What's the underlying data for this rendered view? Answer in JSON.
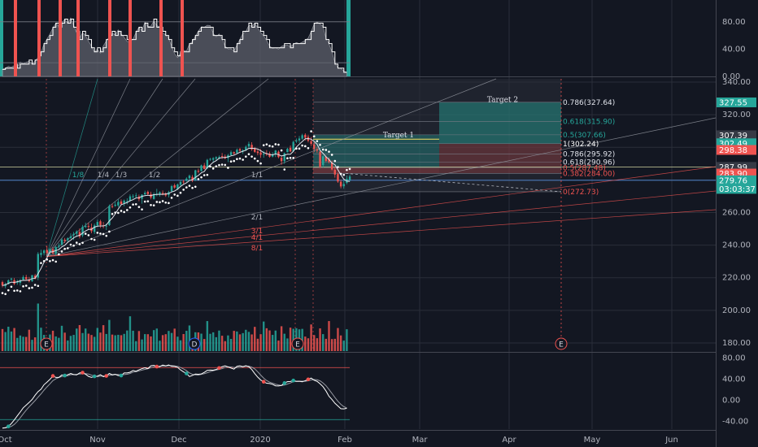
{
  "chart_data": {
    "type": "candlestick",
    "colors": {
      "background": "#131722",
      "up": "#26a69a",
      "down": "#ef5350",
      "grid": "#2a2e39",
      "text": "#b2b5be"
    },
    "x_axis": {
      "tick_labels": [
        "Oct",
        "Nov",
        "Dec",
        "2020",
        "Feb",
        "Mar",
        "Apr",
        "May",
        "Jun"
      ]
    },
    "top_panel": {
      "ylim": [
        0,
        100
      ],
      "tick_labels": [
        "80.00",
        "40.00",
        "0.00"
      ],
      "tick_values": [
        80,
        40,
        0
      ]
    },
    "main_panel": {
      "ylim": [
        175,
        342
      ],
      "tick_labels": [
        "340.00",
        "320.00",
        "300.00",
        "280.00",
        "260.00",
        "240.00",
        "220.00",
        "200.00",
        "180.00"
      ],
      "tick_values": [
        340,
        320,
        300,
        280,
        260,
        240,
        220,
        200,
        180
      ],
      "price_tags": [
        {
          "text": "327.55",
          "value": 327.55,
          "color": "#26a69a"
        },
        {
          "text": "307.39",
          "value": 307.39,
          "color": "#363a45"
        },
        {
          "text": "302.49",
          "value": 302.49,
          "color": "#26a69a"
        },
        {
          "text": "298.38",
          "value": 298.38,
          "color": "#ef5350"
        },
        {
          "text": "287.99",
          "value": 287.99,
          "color": "#363a45"
        },
        {
          "text": "283.90",
          "value": 283.9,
          "color": "#ef5350"
        },
        {
          "text": "279.76",
          "value": 279.76,
          "color": "#26a69a"
        },
        {
          "text": "03:03:37",
          "value": 274.5,
          "color": "#26a69a"
        }
      ],
      "fib_levels": [
        {
          "text": "0.786(327.64)",
          "value": 327.64,
          "color": "#e0e3eb"
        },
        {
          "text": "0.618(315.90)",
          "value": 315.9,
          "color": "#26a69a"
        },
        {
          "text": "0.5(307.66)",
          "value": 307.66,
          "color": "#26a69a"
        },
        {
          "text": "1(302.24)",
          "value": 302.24,
          "color": "#ffffff"
        },
        {
          "text": "0.786(295.92)",
          "value": 295.92,
          "color": "#e0e3eb"
        },
        {
          "text": "0.618(290.96)",
          "value": 290.96,
          "color": "#e0e3eb"
        },
        {
          "text": "0.5(287.48)",
          "value": 287.48,
          "color": "#ef5350"
        },
        {
          "text": "0.382(284.00)",
          "value": 284.0,
          "color": "#ef5350"
        },
        {
          "text": "0(272.73)",
          "value": 272.73,
          "color": "#ef5350"
        }
      ],
      "targets": [
        {
          "text": "Target 1",
          "value": 305.0
        },
        {
          "text": "Target 2",
          "value": 326.8
        }
      ],
      "gann_labels": [
        {
          "text": "1/8",
          "color": "#26a69a"
        },
        {
          "text": "1/4",
          "color": "#b2b5be"
        },
        {
          "text": "1/3",
          "color": "#b2b5be"
        },
        {
          "text": "1/2",
          "color": "#b2b5be"
        },
        {
          "text": "1/1",
          "color": "#b2b5be"
        },
        {
          "text": "2/1",
          "color": "#b2b5be"
        },
        {
          "text": "3/1",
          "color": "#ef5350"
        },
        {
          "text": "4/1",
          "color": "#ef5350"
        },
        {
          "text": "8/1",
          "color": "#ef5350"
        }
      ],
      "event_markers": [
        {
          "text": "E",
          "bar": 12,
          "color": "#ef5350"
        },
        {
          "text": "D",
          "bar": 49,
          "color": "#2962ff"
        },
        {
          "text": "E",
          "bar": 74,
          "color": "#ef5350"
        },
        {
          "text": "E",
          "bar": 141,
          "color": "#ef5350"
        }
      ]
    },
    "ohlc": [
      [
        217.3,
        218.2,
        214.1,
        215.2
      ],
      [
        214.8,
        217.0,
        213.5,
        216.1
      ],
      [
        216.2,
        219.0,
        215.8,
        218.4
      ],
      [
        218.9,
        220.0,
        218.0,
        219.5
      ],
      [
        218.5,
        219.8,
        215.5,
        216.3
      ],
      [
        216.9,
        218.8,
        215.7,
        217.6
      ],
      [
        216.9,
        219.3,
        215.2,
        218.4
      ],
      [
        218.8,
        221.5,
        218.2,
        220.4
      ],
      [
        220.4,
        221.8,
        218.6,
        219.1
      ],
      [
        218.6,
        220.5,
        217.1,
        217.8
      ],
      [
        217.9,
        221.7,
        217.4,
        221.6
      ],
      [
        221.3,
        222.4,
        219.1,
        219.3
      ],
      [
        220.1,
        235.7,
        218.5,
        234.6
      ],
      [
        234.0,
        237.2,
        232.5,
        235.2
      ],
      [
        235.1,
        237.4,
        233.7,
        236.7
      ],
      [
        237.0,
        239.4,
        234.7,
        235.1
      ],
      [
        235.7,
        238.1,
        233.7,
        237.6
      ],
      [
        237.4,
        238.7,
        234.3,
        235.0
      ],
      [
        234.7,
        239.4,
        233.4,
        238.9
      ],
      [
        239.0,
        241.2,
        237.9,
        239.6
      ],
      [
        240.2,
        244.3,
        239.6,
        243.4
      ],
      [
        243.3,
        244.4,
        241.2,
        242.6
      ],
      [
        243.0,
        244.8,
        241.6,
        244.2
      ],
      [
        244.3,
        247.2,
        243.8,
        245.4
      ],
      [
        246.1,
        248.1,
        243.2,
        246.9
      ],
      [
        247.0,
        249.1,
        245.0,
        248.4
      ],
      [
        248.1,
        250.2,
        244.1,
        245.3
      ],
      [
        246.0,
        252.4,
        244.9,
        251.2
      ],
      [
        251.1,
        253.8,
        250.5,
        251.8
      ],
      [
        251.7,
        253.7,
        249.6,
        251.5
      ],
      [
        250.8,
        253.2,
        247.3,
        248.6
      ],
      [
        248.1,
        253.2,
        246.8,
        252.1
      ],
      [
        252.1,
        255.6,
        251.1,
        254.2
      ],
      [
        254.6,
        255.6,
        250.6,
        252.3
      ],
      [
        252.1,
        254.2,
        250.3,
        251.5
      ],
      [
        251.5,
        253.2,
        249.2,
        251.9
      ],
      [
        252.3,
        264.9,
        251.8,
        264.0
      ],
      [
        263.9,
        265.5,
        262.6,
        263.4
      ],
      [
        264.1,
        266.6,
        263.5,
        264.8
      ],
      [
        264.3,
        268.1,
        263.3,
        266.5
      ],
      [
        266.8,
        268.1,
        264.5,
        265.2
      ],
      [
        265.7,
        268.0,
        263.8,
        267.3
      ],
      [
        266.8,
        268.7,
        265.0,
        267.0
      ],
      [
        267.2,
        271.1,
        266.6,
        269.9
      ],
      [
        269.5,
        271.2,
        268.4,
        270.0
      ],
      [
        270.3,
        272.0,
        268.6,
        270.5
      ],
      [
        269.8,
        271.0,
        266.9,
        268.2
      ],
      [
        268.4,
        271.2,
        265.4,
        270.9
      ],
      [
        271.2,
        273.4,
        270.2,
        272.1
      ],
      [
        272.7,
        273.5,
        270.4,
        271.3
      ],
      [
        271.3,
        272.8,
        268.1,
        269.2
      ],
      [
        268.3,
        272.3,
        267.9,
        271.2
      ],
      [
        271.5,
        274.5,
        270.0,
        271.5
      ],
      [
        271.4,
        273.0,
        269.8,
        272.4
      ],
      [
        272.0,
        273.5,
        270.5,
        271.5
      ],
      [
        271.3,
        272.4,
        269.6,
        270.5
      ],
      [
        270.8,
        273.3,
        269.3,
        272.5
      ],
      [
        273.0,
        277.0,
        272.5,
        276.2
      ],
      [
        276.7,
        277.8,
        274.5,
        275.3
      ],
      [
        274.6,
        277.8,
        273.8,
        277.2
      ],
      [
        277.0,
        279.8,
        275.6,
        278.8
      ],
      [
        279.0,
        280.1,
        277.5,
        278.9
      ],
      [
        279.4,
        281.6,
        278.9,
        280.8
      ],
      [
        281.0,
        283.3,
        279.9,
        282.6
      ],
      [
        281.8,
        283.0,
        278.6,
        279.5
      ],
      [
        279.9,
        286.2,
        279.3,
        285.9
      ],
      [
        285.6,
        287.0,
        284.0,
        285.0
      ],
      [
        285.5,
        289.4,
        285.1,
        288.9
      ],
      [
        288.9,
        290.4,
        286.4,
        286.7
      ],
      [
        287.1,
        292.9,
        286.6,
        292.3
      ],
      [
        292.5,
        293.5,
        291.7,
        292.9
      ],
      [
        292.4,
        294.0,
        290.5,
        293.3
      ],
      [
        293.1,
        294.5,
        291.8,
        293.9
      ],
      [
        293.5,
        295.0,
        292.6,
        294.1
      ],
      [
        294.6,
        296.5,
        292.9,
        294.2
      ],
      [
        294.3,
        295.6,
        292.7,
        293.2
      ],
      [
        293.4,
        296.0,
        290.9,
        295.2
      ],
      [
        295.2,
        298.1,
        294.8,
        297.0
      ],
      [
        297.0,
        297.4,
        295.1,
        296.2
      ],
      [
        296.5,
        299.3,
        296.3,
        298.5
      ],
      [
        298.9,
        299.7,
        296.6,
        297.9
      ],
      [
        297.6,
        298.9,
        295.9,
        298.2
      ],
      [
        298.1,
        301.2,
        297.8,
        300.3
      ],
      [
        300.5,
        303.5,
        299.3,
        302.1
      ],
      [
        301.5,
        303.1,
        297.8,
        298.7
      ],
      [
        299.3,
        300.2,
        296.6,
        297.2
      ],
      [
        297.4,
        299.0,
        295.1,
        296.5
      ],
      [
        296.8,
        298.8,
        293.6,
        295.4
      ],
      [
        295.7,
        297.8,
        293.6,
        296.0
      ],
      [
        296.0,
        298.3,
        294.8,
        295.8
      ],
      [
        296.2,
        297.4,
        293.6,
        294.2
      ],
      [
        294.3,
        297.0,
        293.8,
        295.7
      ],
      [
        296.1,
        298.4,
        294.0,
        298.0
      ],
      [
        297.3,
        298.1,
        293.3,
        294.0
      ],
      [
        293.6,
        294.6,
        289.3,
        291.5
      ],
      [
        291.5,
        296.8,
        289.9,
        296.4
      ],
      [
        297.0,
        299.7,
        296.8,
        299.1
      ],
      [
        299.7,
        301.1,
        297.0,
        297.5
      ],
      [
        297.6,
        304.1,
        297.0,
        303.3
      ],
      [
        303.6,
        305.4,
        302.7,
        304.2
      ],
      [
        304.2,
        306.9,
        302.7,
        305.4
      ],
      [
        305.3,
        308.3,
        304.6,
        307.4
      ],
      [
        307.7,
        308.6,
        304.2,
        305.9
      ],
      [
        306.4,
        307.7,
        303.0,
        304.0
      ],
      [
        303.8,
        306.3,
        300.8,
        302.1
      ],
      [
        301.7,
        303.2,
        297.1,
        299.1
      ],
      [
        298.7,
        300.3,
        296.6,
        298.0
      ],
      [
        297.4,
        298.0,
        287.2,
        287.9
      ],
      [
        289.1,
        295.1,
        287.8,
        294.5
      ],
      [
        294.2,
        294.9,
        290.9,
        291.6
      ],
      [
        292.6,
        293.8,
        290.1,
        291.0
      ],
      [
        290.6,
        291.9,
        285.8,
        286.4
      ],
      [
        286.2,
        288.1,
        281.4,
        283.3
      ],
      [
        283.6,
        284.4,
        278.2,
        279.0
      ],
      [
        278.9,
        280.2,
        274.8,
        276.0
      ],
      [
        276.1,
        279.6,
        274.6,
        277.5
      ],
      [
        278.2,
        282.6,
        277.3,
        280.7
      ],
      [
        280.0,
        283.2,
        279.0,
        282.1
      ]
    ],
    "volume": [
      28.6,
      24.7,
      31.6,
      25.4,
      29.9,
      17.1,
      20.2,
      18.6,
      18.4,
      27.7,
      14.6,
      17.8,
      61.6,
      30.3,
      21.0,
      15.4,
      21.5,
      26.4,
      19.0,
      17.2,
      32.8,
      23.9,
      13.8,
      19.7,
      21.0,
      29.2,
      33.7,
      23.4,
      29.2,
      22.6,
      20.9,
      18.5,
      30.0,
      24.0,
      33.6,
      22.2,
      40.4,
      21.4,
      20.5,
      21.1,
      20.6,
      22.3,
      26.7,
      45.1,
      26.4,
      12.9,
      26.0,
      15.1,
      22.0,
      21.9,
      19.0,
      27.2,
      29.2,
      13.5,
      20.7,
      21.9,
      26.1,
      23.5,
      29.1,
      18.7,
      14.0,
      22.1,
      26.3,
      33.2,
      14.5,
      24.4,
      24.2,
      22.6,
      15.7,
      38.9,
      22.4,
      24.3,
      18.0,
      26.6,
      19.9,
      12.9,
      20.3,
      15.8,
      26.2,
      25.4,
      21.7,
      23.3,
      27.6,
      24.9,
      21.6,
      31.4,
      16.0,
      21.9,
      38.3,
      29.6,
      26.8,
      21.0,
      26.6,
      13.7,
      32.2,
      22.5,
      16.4,
      30.4,
      28.9,
      29.6,
      28.2,
      28.8,
      18.8,
      16.6,
      34.5,
      20.8,
      16.7,
      29.4,
      22.0,
      15.9,
      38.9,
      15.6,
      15.9,
      29.9,
      20.3,
      13.6,
      28.3
    ],
    "top_indicator": [
      10.2,
      12.4,
      14.6,
      13.5,
      15.8,
      14.2,
      20.9,
      18.4,
      20.6,
      22.2,
      17.8,
      22.5,
      27.8,
      34.9,
      47.6,
      54.7,
      62.0,
      71.1,
      78.0,
      73.2,
      79.1,
      83.4,
      77.3,
      85.6,
      74.8,
      63.5,
      56.2,
      64.0,
      59.6,
      51.5,
      44.4,
      35.6,
      39.8,
      34.0,
      44.9,
      52.0,
      57.8,
      63.2,
      60.8,
      68.2,
      62.4,
      57.2,
      51.1,
      51.1,
      54.6,
      64.6,
      72.1,
      67.3,
      79.7,
      73.2,
      73.7,
      81.1,
      74.4,
      72.8,
      63.5,
      61.1,
      56.4,
      43.8,
      33.2,
      27.5,
      33.9,
      38.3,
      37.0,
      47.4,
      51.0,
      58.8,
      66.3,
      72.7,
      72.2,
      74.9,
      74.5,
      62.8,
      58.0,
      62.2,
      55.4,
      44.3,
      40.3,
      40.5,
      37.4,
      45.8,
      54.3,
      63.0,
      65.6,
      75.0,
      73.6,
      77.9,
      71.0,
      64.4,
      59.5,
      52.6,
      44.5,
      40.9,
      42.0,
      40.0,
      44.0,
      45.5,
      45.9,
      43.9,
      46.7,
      49.8,
      47.9,
      50.3,
      52.6,
      56.2,
      65.8,
      76.7,
      79.7,
      76.6,
      73.3,
      55.6,
      47.6,
      36.2,
      20.3,
      12.5,
      11.8,
      7.8,
      6.1
    ],
    "bottom_panel": {
      "ylim": [
        -55,
        85
      ],
      "tick_labels": [
        "80.00",
        "40.00",
        "0.00",
        "-40.00"
      ],
      "tick_values": [
        80,
        40,
        0,
        -40
      ],
      "k": [
        -53.0,
        -52.3,
        -49.9,
        -44.4,
        -37.6,
        -29.9,
        -22.5,
        -14.7,
        -9.6,
        -4.5,
        1.1,
        9.1,
        16.0,
        20.6,
        29.0,
        33.8,
        39.2,
        45.6,
        42.8,
        42.8,
        47.4,
        46.4,
        48.0,
        50.4,
        48.3,
        47.7,
        51.4,
        51.9,
        48.9,
        44.8,
        43.0,
        44.9,
        45.2,
        48.0,
        44.3,
        45.7,
        50.4,
        47.9,
        48.8,
        46.4,
        46.4,
        51.3,
        51.3,
        52.7,
        55.9,
        54.5,
        57.2,
        59.5,
        61.2,
        59.6,
        64.8,
        65.7,
        63.3,
        63.2,
        66.3,
        64.7,
        66.4,
        63.8,
        63.7,
        61.9,
        57.1,
        53.4,
        50.3,
        44.5,
        46.7,
        49.2,
        48.8,
        49.5,
        52.4,
        56.2,
        56.8,
        56.5,
        58.0,
        60.7,
        63.1,
        64.7,
        62.8,
        60.5,
        58.6,
        63.8,
        64.7,
        63.3,
        64.9,
        63.1,
        57.8,
        50.1,
        43.4,
        37.9,
        34.7,
        31.9,
        31.3,
        29.7,
        27.0,
        26.8,
        27.6,
        32.2,
        34.8,
        35.2,
        37.0,
        35.4,
        35.6,
        34.7,
        36.6,
        39.2,
        41.6,
        37.6,
        35.4,
        30.8,
        25.3,
        17.2,
        7.1,
        1.1,
        -6.0,
        -11.1,
        -16.3,
        -16.7,
        -15.5
      ],
      "dots": [
        {
          "bar": 17,
          "color": "#ef5350"
        },
        {
          "bar": 21,
          "color": "#26a69a"
        },
        {
          "bar": 27,
          "color": "#ef5350"
        },
        {
          "bar": 31,
          "color": "#26a69a"
        },
        {
          "bar": 35,
          "color": "#ef5350"
        },
        {
          "bar": 40,
          "color": "#26a69a"
        },
        {
          "bar": 52,
          "color": "#ef5350"
        },
        {
          "bar": 62,
          "color": "#26a69a"
        },
        {
          "bar": 73,
          "color": "#ef5350"
        },
        {
          "bar": 88,
          "color": "#ef5350"
        },
        {
          "bar": 95,
          "color": "#26a69a"
        },
        {
          "bar": 103,
          "color": "#ef5350"
        },
        {
          "bar": 98,
          "color": "#26a69a"
        },
        {
          "bar": 2,
          "color": "#26a69a"
        }
      ]
    }
  }
}
